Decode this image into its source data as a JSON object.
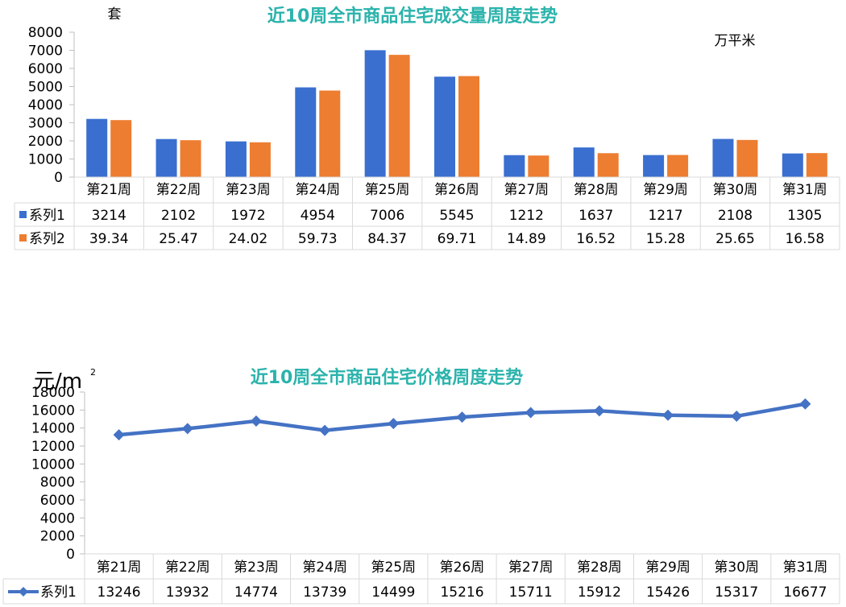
{
  "colors": {
    "title": "#2bb3ac",
    "series1_bar": "#3a6fd0",
    "series2_bar": "#ed7d31",
    "line": "#4472c4",
    "grid": "#d9d9d9",
    "axis": "#bfbfbf"
  },
  "chart_data": [
    {
      "type": "bar",
      "title": "近10周全市商品住宅成交量周度走势",
      "left_unit": "套",
      "right_unit": "万平米",
      "categories": [
        "第21周",
        "第22周",
        "第23周",
        "第24周",
        "第25周",
        "第26周",
        "第27周",
        "第28周",
        "第29周",
        "第30周",
        "第31周"
      ],
      "series": [
        {
          "name": "系列1",
          "values": [
            3214,
            2102,
            1972,
            4954,
            7006,
            5545,
            1212,
            1637,
            1217,
            2108,
            1305
          ]
        },
        {
          "name": "系列2",
          "values": [
            39.34,
            25.47,
            24.02,
            59.73,
            84.37,
            69.71,
            14.89,
            16.52,
            15.28,
            25.65,
            16.58
          ]
        }
      ],
      "series_display": [
        [
          "3214",
          "2102",
          "1972",
          "4954",
          "7006",
          "5545",
          "1212",
          "1637",
          "1217",
          "2108",
          "1305"
        ],
        [
          "39.34",
          "25.47",
          "24.02",
          "59.73",
          "84.37",
          "69.71",
          "14.89",
          "16.52",
          "15.28",
          "25.65",
          "16.58"
        ]
      ],
      "ylim": [
        0,
        8000
      ],
      "yticks": [
        "8000",
        "7000",
        "6000",
        "5000",
        "4000",
        "3000",
        "2000",
        "1000",
        "0"
      ],
      "data_table": true,
      "legend": "data-table"
    },
    {
      "type": "line",
      "title": "近10周全市商品住宅价格周度走势",
      "unit": "元/m",
      "unit_sup": "2",
      "categories": [
        "第21周",
        "第22周",
        "第23周",
        "第24周",
        "第25周",
        "第26周",
        "第27周",
        "第28周",
        "第29周",
        "第30周",
        "第31周"
      ],
      "series": [
        {
          "name": "系列1",
          "values": [
            13246,
            13932,
            14774,
            13739,
            14499,
            15216,
            15711,
            15912,
            15426,
            15317,
            16677
          ]
        }
      ],
      "ylim": [
        0,
        18000
      ],
      "yticks": [
        "18000",
        "16000",
        "14000",
        "12000",
        "10000",
        "8000",
        "6000",
        "4000",
        "2000",
        "0"
      ],
      "data_table": true,
      "legend": "data-table"
    }
  ]
}
